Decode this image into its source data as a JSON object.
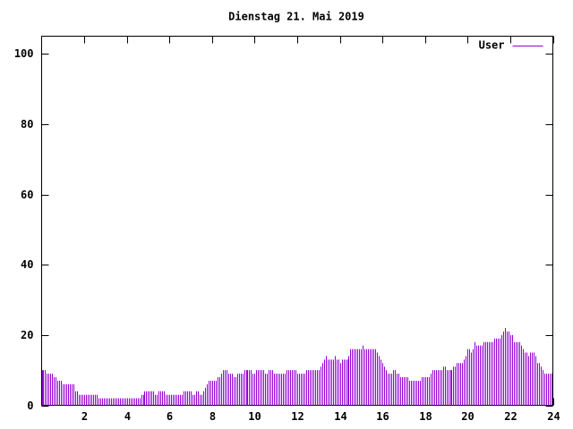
{
  "chart_data": {
    "type": "impulse",
    "title": "Dienstag 21. Mai 2019",
    "xlim": [
      0,
      24
    ],
    "xticks": [
      2,
      4,
      6,
      8,
      10,
      12,
      14,
      16,
      18,
      20,
      22,
      24
    ],
    "ylim": [
      0,
      105
    ],
    "yticks": [
      0,
      20,
      40,
      60,
      80,
      100
    ],
    "legend": "top-right",
    "series": [
      {
        "name": "User",
        "color": "#9400d3",
        "values": [
          10,
          10,
          10,
          9,
          9,
          9,
          9,
          8,
          8,
          7,
          7,
          7,
          6,
          6,
          6,
          6,
          6,
          6,
          6,
          4,
          4,
          3,
          3,
          3,
          3,
          3,
          3,
          3,
          3,
          3,
          3,
          3,
          2,
          2,
          2,
          2,
          2,
          2,
          2,
          2,
          2,
          2,
          2,
          2,
          2,
          2,
          2,
          2,
          2,
          2,
          2,
          2,
          2,
          2,
          2,
          2,
          3,
          3,
          4,
          4,
          4,
          4,
          4,
          4,
          3,
          3,
          4,
          4,
          4,
          4,
          3,
          3,
          3,
          3,
          3,
          3,
          3,
          3,
          3,
          3,
          4,
          4,
          4,
          4,
          4,
          3,
          3,
          4,
          4,
          3,
          3,
          4,
          5,
          6,
          7,
          7,
          7,
          7,
          7,
          8,
          8,
          9,
          10,
          10,
          10,
          9,
          9,
          9,
          8,
          8,
          9,
          9,
          9,
          9,
          10,
          10,
          10,
          10,
          10,
          9,
          9,
          10,
          10,
          10,
          10,
          10,
          9,
          9,
          10,
          10,
          10,
          9,
          9,
          9,
          9,
          9,
          9,
          9,
          10,
          10,
          10,
          10,
          10,
          10,
          9,
          9,
          9,
          9,
          9,
          10,
          10,
          10,
          10,
          10,
          10,
          10,
          10,
          11,
          12,
          13,
          14,
          13,
          13,
          13,
          13,
          14,
          13,
          13,
          12,
          13,
          13,
          13,
          13,
          14,
          16,
          16,
          16,
          16,
          16,
          16,
          16,
          17,
          16,
          16,
          16,
          16,
          16,
          16,
          16,
          15,
          14,
          13,
          12,
          11,
          10,
          9,
          9,
          9,
          10,
          10,
          9,
          9,
          8,
          8,
          8,
          8,
          8,
          7,
          7,
          7,
          7,
          7,
          7,
          7,
          8,
          8,
          8,
          8,
          8,
          9,
          10,
          10,
          10,
          10,
          10,
          10,
          11,
          11,
          10,
          10,
          10,
          10,
          11,
          11,
          12,
          12,
          12,
          12,
          13,
          14,
          16,
          16,
          15,
          16,
          18,
          17,
          17,
          17,
          17,
          18,
          18,
          18,
          18,
          18,
          18,
          19,
          19,
          19,
          19,
          20,
          21,
          22,
          21,
          21,
          20,
          20,
          18,
          18,
          18,
          18,
          17,
          16,
          15,
          15,
          14,
          15,
          15,
          15,
          14,
          12,
          12,
          11,
          10,
          9,
          9,
          9,
          9,
          9
        ]
      }
    ]
  }
}
